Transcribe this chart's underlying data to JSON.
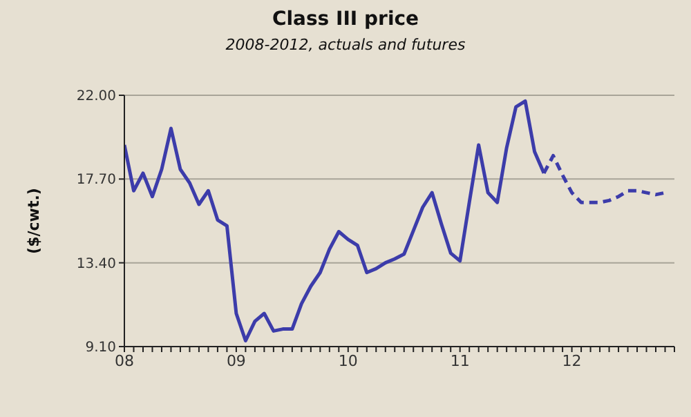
{
  "chart_data": {
    "type": "line",
    "title": "Class III price",
    "subtitle": "2008-2012, actuals and futures",
    "ylabel": "($/cwt.)",
    "xlim": [
      "2008-01",
      "2012-12"
    ],
    "xticks": [
      {
        "value": "2008-01",
        "label": "08"
      },
      {
        "value": "2008-02",
        "label": null
      },
      {
        "value": "2008-03",
        "label": null
      },
      {
        "value": "2008-04",
        "label": null
      },
      {
        "value": "2008-05",
        "label": null
      },
      {
        "value": "2008-06",
        "label": null
      },
      {
        "value": "2008-07",
        "label": null
      },
      {
        "value": "2008-08",
        "label": null
      },
      {
        "value": "2008-09",
        "label": null
      },
      {
        "value": "2008-10",
        "label": null
      },
      {
        "value": "2008-11",
        "label": null
      },
      {
        "value": "2008-12",
        "label": null
      },
      {
        "value": "2009-01",
        "label": "09"
      },
      {
        "value": "2009-02",
        "label": null
      },
      {
        "value": "2009-03",
        "label": null
      },
      {
        "value": "2009-04",
        "label": null
      },
      {
        "value": "2009-05",
        "label": null
      },
      {
        "value": "2009-06",
        "label": null
      },
      {
        "value": "2009-07",
        "label": null
      },
      {
        "value": "2009-08",
        "label": null
      },
      {
        "value": "2009-09",
        "label": null
      },
      {
        "value": "2009-10",
        "label": null
      },
      {
        "value": "2009-11",
        "label": null
      },
      {
        "value": "2009-12",
        "label": null
      },
      {
        "value": "2010-01",
        "label": "10"
      },
      {
        "value": "2010-02",
        "label": null
      },
      {
        "value": "2010-03",
        "label": null
      },
      {
        "value": "2010-04",
        "label": null
      },
      {
        "value": "2010-05",
        "label": null
      },
      {
        "value": "2010-06",
        "label": null
      },
      {
        "value": "2010-07",
        "label": null
      },
      {
        "value": "2010-08",
        "label": null
      },
      {
        "value": "2010-09",
        "label": null
      },
      {
        "value": "2010-10",
        "label": null
      },
      {
        "value": "2010-11",
        "label": null
      },
      {
        "value": "2010-12",
        "label": null
      },
      {
        "value": "2011-01",
        "label": "11"
      },
      {
        "value": "2011-02",
        "label": null
      },
      {
        "value": "2011-03",
        "label": null
      },
      {
        "value": "2011-04",
        "label": null
      },
      {
        "value": "2011-05",
        "label": null
      },
      {
        "value": "2011-06",
        "label": null
      },
      {
        "value": "2011-07",
        "label": null
      },
      {
        "value": "2011-08",
        "label": null
      },
      {
        "value": "2011-09",
        "label": null
      },
      {
        "value": "2011-10",
        "label": null
      },
      {
        "value": "2011-11",
        "label": null
      },
      {
        "value": "2011-12",
        "label": null
      },
      {
        "value": "2012-01",
        "label": "12"
      },
      {
        "value": "2012-02",
        "label": null
      },
      {
        "value": "2012-03",
        "label": null
      },
      {
        "value": "2012-04",
        "label": null
      },
      {
        "value": "2012-05",
        "label": null
      },
      {
        "value": "2012-06",
        "label": null
      },
      {
        "value": "2012-07",
        "label": null
      },
      {
        "value": "2012-08",
        "label": null
      },
      {
        "value": "2012-09",
        "label": null
      },
      {
        "value": "2012-10",
        "label": null
      },
      {
        "value": "2012-11",
        "label": null
      },
      {
        "value": "2012-12",
        "label": null
      }
    ],
    "ylim": [
      9.1,
      22
    ],
    "yticks": [
      {
        "value": 9.1,
        "label": "9.10"
      },
      {
        "value": 13.4,
        "label": "13.40"
      },
      {
        "value": 17.7,
        "label": "17.70"
      },
      {
        "value": 22,
        "label": "22.00"
      }
    ],
    "grid": "y",
    "marker": "none",
    "series": [
      {
        "color": "#3c3caa",
        "line_style": "solid",
        "x": [
          "2008-01",
          "2008-02",
          "2008-03",
          "2008-04",
          "2008-05",
          "2008-06",
          "2008-07",
          "2008-08",
          "2008-09",
          "2008-10",
          "2008-11",
          "2008-12",
          "2009-01",
          "2009-02",
          "2009-03",
          "2009-04",
          "2009-05",
          "2009-06",
          "2009-07",
          "2009-08",
          "2009-09",
          "2009-10",
          "2009-11",
          "2009-12",
          "2010-01",
          "2010-02",
          "2010-03",
          "2010-04",
          "2010-05",
          "2010-06",
          "2010-07",
          "2010-08",
          "2010-09",
          "2010-10",
          "2010-11",
          "2010-12",
          "2011-01",
          "2011-02",
          "2011-03",
          "2011-04",
          "2011-05",
          "2011-06",
          "2011-07",
          "2011-08",
          "2011-09",
          "2011-10"
        ],
        "values": [
          19.45,
          17.1,
          18.0,
          16.8,
          18.2,
          20.3,
          18.2,
          17.5,
          16.4,
          17.1,
          15.6,
          15.3,
          10.8,
          9.4,
          10.4,
          10.8,
          9.9,
          10.0,
          10.0,
          11.3,
          12.2,
          12.9,
          14.1,
          15.0,
          14.6,
          14.3,
          12.9,
          13.1,
          13.4,
          13.6,
          13.85,
          15.05,
          16.25,
          17.0,
          15.4,
          13.9,
          13.5,
          16.5,
          19.45,
          17.0,
          16.5,
          19.3,
          21.4,
          21.7,
          19.1,
          18.0
        ]
      },
      {
        "color": "#3c3caa",
        "line_style": "dashed",
        "x": [
          "2011-10",
          "2011-11",
          "2011-12",
          "2012-01",
          "2012-02",
          "2012-03",
          "2012-04",
          "2012-05",
          "2012-06",
          "2012-07",
          "2012-08",
          "2012-09",
          "2012-10",
          "2012-11"
        ],
        "values": [
          18.0,
          18.9,
          17.9,
          17.0,
          16.5,
          16.5,
          16.5,
          16.6,
          16.8,
          17.1,
          17.1,
          17.0,
          16.9,
          17.0
        ]
      }
    ]
  }
}
